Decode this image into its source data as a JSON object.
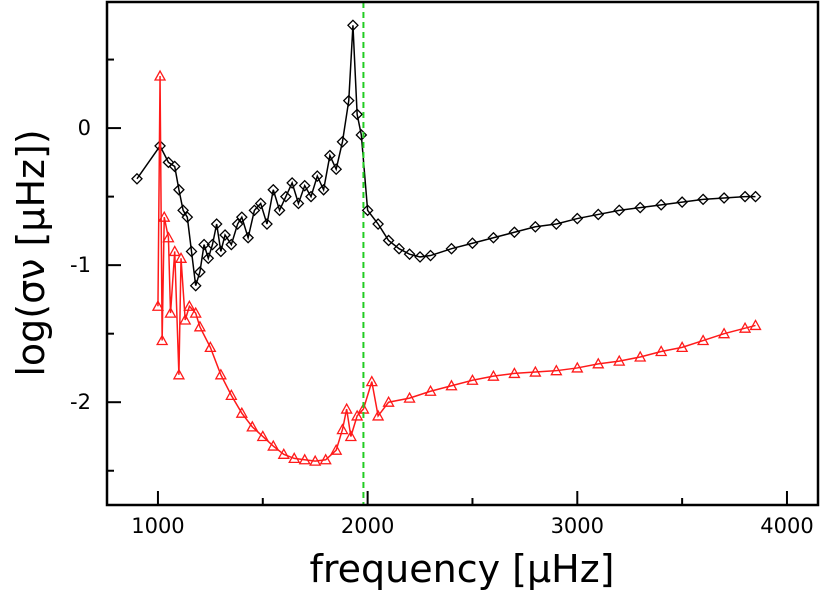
{
  "chart_data": {
    "type": "line",
    "xlabel": "frequency [μHz]",
    "ylabel": "log(σν [μHz])",
    "xlim": [
      757,
      4148
    ],
    "ylim": [
      -2.75,
      0.92
    ],
    "xticks": [
      1000,
      2000,
      3000,
      4000
    ],
    "yticks": [
      -2,
      -1,
      0
    ],
    "xminorticks": [
      1500,
      2500,
      3500
    ],
    "yminorticks": [
      -2.5,
      -1.5,
      -0.5,
      0.5
    ],
    "vline": {
      "x": 1980,
      "color": "#22cc22",
      "style": "dashed"
    },
    "series": [
      {
        "color": "#000000",
        "marker": "diamond",
        "x": [
          900,
          1010,
          1050,
          1080,
          1100,
          1120,
          1140,
          1160,
          1180,
          1200,
          1220,
          1240,
          1260,
          1280,
          1300,
          1320,
          1350,
          1380,
          1400,
          1430,
          1460,
          1490,
          1520,
          1550,
          1580,
          1610,
          1640,
          1670,
          1700,
          1730,
          1760,
          1790,
          1820,
          1850,
          1880,
          1910,
          1930,
          1950,
          1970,
          2000,
          2050,
          2100,
          2150,
          2200,
          2250,
          2300,
          2400,
          2500,
          2600,
          2700,
          2800,
          2900,
          3000,
          3100,
          3200,
          3300,
          3400,
          3500,
          3600,
          3700,
          3800,
          3850
        ],
        "values": [
          -0.37,
          -0.13,
          -0.25,
          -0.28,
          -0.45,
          -0.6,
          -0.65,
          -0.9,
          -1.15,
          -1.05,
          -0.85,
          -0.95,
          -0.85,
          -0.7,
          -0.9,
          -0.78,
          -0.85,
          -0.7,
          -0.65,
          -0.8,
          -0.6,
          -0.55,
          -0.7,
          -0.45,
          -0.6,
          -0.5,
          -0.4,
          -0.55,
          -0.42,
          -0.5,
          -0.35,
          -0.45,
          -0.2,
          -0.3,
          -0.1,
          0.2,
          0.75,
          0.1,
          -0.05,
          -0.6,
          -0.7,
          -0.82,
          -0.88,
          -0.92,
          -0.94,
          -0.93,
          -0.88,
          -0.84,
          -0.8,
          -0.76,
          -0.72,
          -0.7,
          -0.66,
          -0.63,
          -0.6,
          -0.58,
          -0.56,
          -0.54,
          -0.52,
          -0.51,
          -0.5,
          -0.5
        ]
      },
      {
        "color": "#ff1a1a",
        "marker": "triangle",
        "x": [
          1000,
          1010,
          1020,
          1030,
          1050,
          1060,
          1080,
          1100,
          1110,
          1130,
          1150,
          1180,
          1200,
          1250,
          1300,
          1350,
          1400,
          1450,
          1500,
          1550,
          1600,
          1650,
          1700,
          1750,
          1800,
          1850,
          1880,
          1900,
          1920,
          1950,
          1980,
          2020,
          2050,
          2100,
          2200,
          2300,
          2400,
          2500,
          2600,
          2700,
          2800,
          2900,
          3000,
          3100,
          3200,
          3300,
          3400,
          3500,
          3600,
          3700,
          3800,
          3850
        ],
        "values": [
          -1.3,
          0.38,
          -1.55,
          -0.65,
          -0.8,
          -1.35,
          -0.9,
          -1.8,
          -0.95,
          -1.4,
          -1.3,
          -1.35,
          -1.45,
          -1.6,
          -1.8,
          -1.95,
          -2.08,
          -2.18,
          -2.25,
          -2.32,
          -2.38,
          -2.41,
          -2.42,
          -2.43,
          -2.42,
          -2.35,
          -2.2,
          -2.05,
          -2.25,
          -2.1,
          -2.05,
          -1.85,
          -2.1,
          -2.0,
          -1.97,
          -1.92,
          -1.88,
          -1.84,
          -1.81,
          -1.79,
          -1.78,
          -1.77,
          -1.75,
          -1.72,
          -1.7,
          -1.67,
          -1.63,
          -1.6,
          -1.55,
          -1.5,
          -1.46,
          -1.44
        ]
      }
    ]
  }
}
